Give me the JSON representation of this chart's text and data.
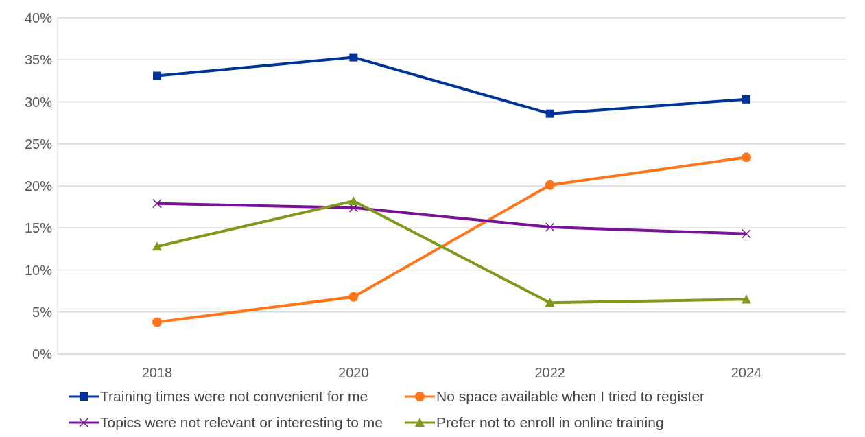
{
  "chart_data": {
    "type": "line",
    "categories": [
      "2018",
      "2020",
      "2022",
      "2024"
    ],
    "series": [
      {
        "name": "Training times were not convenient for me",
        "color": "#003399",
        "marker": "square",
        "values": [
          33.1,
          35.3,
          28.6,
          30.3
        ]
      },
      {
        "name": "No space available when I tried to register",
        "color": "#ff7518",
        "marker": "circle",
        "values": [
          3.8,
          6.8,
          20.1,
          23.4
        ]
      },
      {
        "name": "Topics were not relevant or interesting to me",
        "color": "#7a0f99",
        "marker": "cross",
        "values": [
          17.9,
          17.4,
          15.1,
          14.3
        ]
      },
      {
        "name": "Prefer not to enroll in online training",
        "color": "#7f9a1a",
        "marker": "triangle",
        "values": [
          12.8,
          18.2,
          6.1,
          6.5
        ]
      }
    ],
    "ylim": [
      0,
      40
    ],
    "yticks": [
      {
        "value": 0,
        "label": "0%"
      },
      {
        "value": 5,
        "label": "5%"
      },
      {
        "value": 10,
        "label": "10%"
      },
      {
        "value": 15,
        "label": "15%"
      },
      {
        "value": 20,
        "label": "20%"
      },
      {
        "value": 25,
        "label": "25%"
      },
      {
        "value": 30,
        "label": "30%"
      },
      {
        "value": 35,
        "label": "35%"
      },
      {
        "value": 40,
        "label": "40%"
      }
    ],
    "grid": "y",
    "legend": "bottom"
  }
}
